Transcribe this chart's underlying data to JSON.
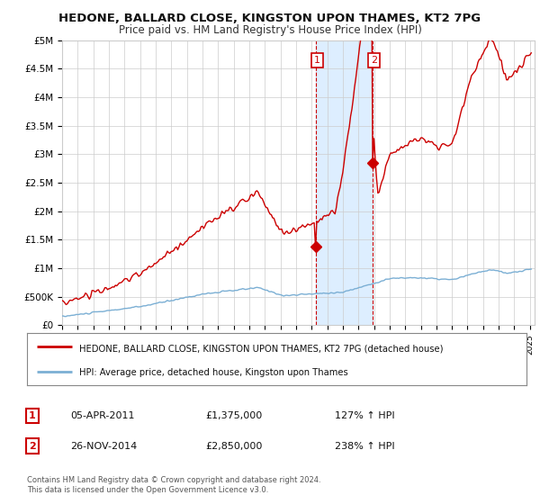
{
  "title": "HEDONE, BALLARD CLOSE, KINGSTON UPON THAMES, KT2 7PG",
  "subtitle": "Price paid vs. HM Land Registry's House Price Index (HPI)",
  "ylabel_ticks": [
    "£0",
    "£500K",
    "£1M",
    "£1.5M",
    "£2M",
    "£2.5M",
    "£3M",
    "£3.5M",
    "£4M",
    "£4.5M",
    "£5M"
  ],
  "ytick_values": [
    0,
    500000,
    1000000,
    1500000,
    2000000,
    2500000,
    3000000,
    3500000,
    4000000,
    4500000,
    5000000
  ],
  "ylim": [
    0,
    5000000
  ],
  "sale1_date": 2011.27,
  "sale1_price": 1375000,
  "sale2_date": 2014.9,
  "sale2_price": 2850000,
  "legend_line1": "HEDONE, BALLARD CLOSE, KINGSTON UPON THAMES, KT2 7PG (detached house)",
  "legend_line2": "HPI: Average price, detached house, Kingston upon Thames",
  "table_row1": [
    "1",
    "05-APR-2011",
    "£1,375,000",
    "127% ↑ HPI"
  ],
  "table_row2": [
    "2",
    "26-NOV-2014",
    "£2,850,000",
    "238% ↑ HPI"
  ],
  "footnote": "Contains HM Land Registry data © Crown copyright and database right 2024.\nThis data is licensed under the Open Government Licence v3.0.",
  "hpi_color": "#7bafd4",
  "price_color": "#cc0000",
  "shading_color": "#ddeeff",
  "background_color": "#ffffff",
  "grid_color": "#cccccc"
}
